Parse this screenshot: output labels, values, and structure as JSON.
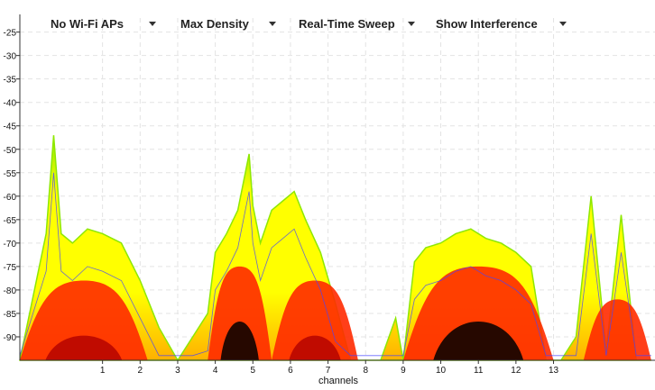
{
  "toolbar": {
    "wifi_filter_label": "No Wi-Fi APs",
    "density_label": "Max Density",
    "sweep_label": "Real-Time Sweep",
    "interference_label": "Show Interference"
  },
  "colors": {
    "background": "#ffffff",
    "grid": "#e3e3e3",
    "axis": "#333333",
    "density_low": "#8ee800",
    "density_mid": "#ffff00",
    "density_high": "#ff2a00",
    "density_max": "#000000",
    "sweep_line": "#4444ff"
  },
  "chart_data": {
    "type": "heatmap",
    "title": "",
    "xlabel": "channels",
    "ylabel": "",
    "x_ticks": [
      1,
      2,
      3,
      4,
      5,
      6,
      7,
      8,
      9,
      10,
      11,
      12,
      13
    ],
    "y_ticks": [
      -25,
      -30,
      -35,
      -40,
      -45,
      -50,
      -55,
      -60,
      -65,
      -70,
      -75,
      -80,
      -85,
      -90
    ],
    "xlim": [
      -1.2,
      15.7
    ],
    "ylim": [
      -95,
      -22
    ],
    "grid": true,
    "legend": "none",
    "peak_envelope": {
      "x": [
        -1.2,
        -0.5,
        -0.3,
        -0.1,
        0.2,
        0.6,
        1.0,
        1.5,
        2.0,
        2.5,
        3.0,
        3.4,
        3.8,
        4.0,
        4.3,
        4.6,
        4.9,
        5.0,
        5.2,
        5.5,
        5.8,
        6.1,
        6.4,
        6.8,
        7.2,
        7.6,
        8.0,
        8.4,
        8.8,
        9.0,
        9.3,
        9.6,
        10.0,
        10.4,
        10.8,
        11.2,
        11.6,
        12.0,
        12.4,
        12.8,
        13.2,
        13.6,
        14.0,
        14.4,
        14.8,
        15.2,
        15.6
      ],
      "y": [
        -95,
        -68,
        -47,
        -68,
        -70,
        -67,
        -68,
        -70,
        -78,
        -88,
        -95,
        -90,
        -85,
        -72,
        -68,
        -63,
        -51,
        -62,
        -70,
        -63,
        -61,
        -59,
        -65,
        -72,
        -83,
        -95,
        -95,
        -95,
        -86,
        -95,
        -74,
        -71,
        -70,
        -68,
        -67,
        -69,
        -70,
        -72,
        -75,
        -95,
        -95,
        -90,
        -60,
        -93,
        -64,
        -95,
        -95
      ]
    },
    "density_bands": [
      {
        "x_range": [
          -1.2,
          2.2
        ],
        "level": "high"
      },
      {
        "x_range": [
          3.8,
          5.5
        ],
        "level": "max"
      },
      {
        "x_range": [
          5.5,
          7.8
        ],
        "level": "high"
      },
      {
        "x_range": [
          9.0,
          13.0
        ],
        "level": "max"
      },
      {
        "x_range": [
          13.8,
          15.6
        ],
        "level": "low"
      }
    ]
  },
  "x_axis_title": "channels"
}
